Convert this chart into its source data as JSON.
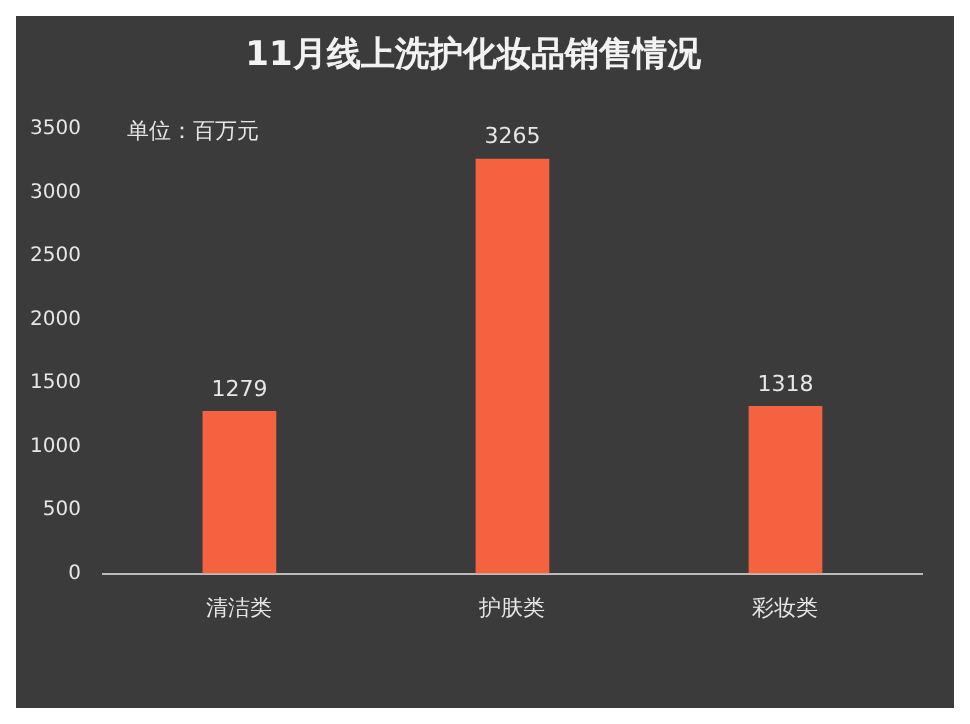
{
  "chart_data": {
    "type": "bar",
    "title": "11月线上洗护化妆品销售情况",
    "categories": [
      "清洁类",
      "护肤类",
      "彩妆类"
    ],
    "values": [
      1279,
      3265,
      1318
    ],
    "color": "#f4623f",
    "ylim": [
      0,
      3500
    ],
    "yticks": [
      0,
      500,
      1000,
      1500,
      2000,
      2500,
      3000,
      3500
    ],
    "grid": false,
    "legend": false,
    "data_labels": true,
    "annotations": [
      "单位：百万元"
    ]
  }
}
